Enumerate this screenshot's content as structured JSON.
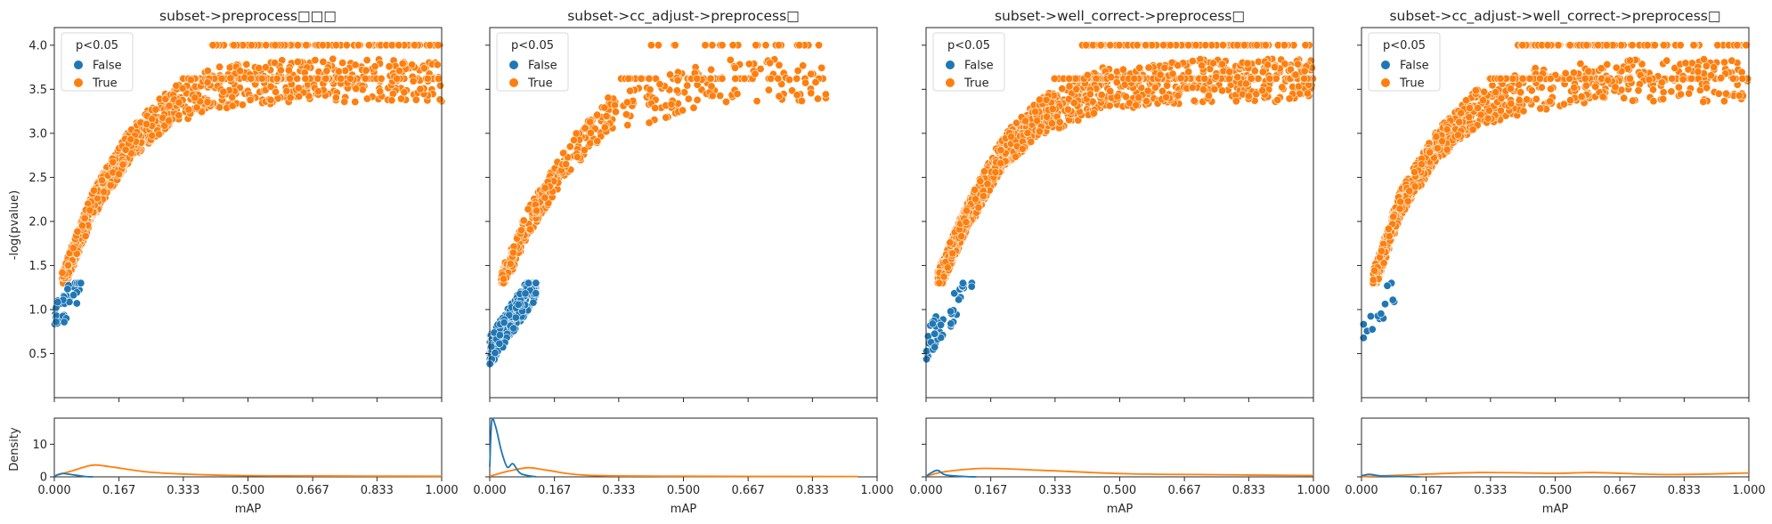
{
  "figure": {
    "ylabel_top": "-log(pvalue)",
    "ylabel_bottom": "Density",
    "xlabel": "mAP",
    "legend_title": "p<0.05",
    "legend_false": "False",
    "legend_true": "True"
  },
  "colors": {
    "false": "#1f77b4",
    "true": "#ff7f0e",
    "axis": "#262626"
  },
  "chart_data": [
    {
      "type": "scatter",
      "title": "subset->preprocess□□□",
      "xlabel": "mAP",
      "ylabel": "-log(pvalue)",
      "xlim": [
        0,
        1
      ],
      "ylim": [
        0,
        4.2
      ],
      "legend": [
        "False",
        "True"
      ],
      "legend_position": "top-left",
      "series_false": {
        "name": "False",
        "mapRange": [
          0.0,
          0.07
        ],
        "logpRange": [
          0.7,
          1.3
        ],
        "count": 40
      },
      "series_true": {
        "name": "True",
        "curve": [
          [
            0.02,
            1.3
          ],
          [
            0.1,
            2.2
          ],
          [
            0.2,
            2.9
          ],
          [
            0.3,
            3.3
          ],
          [
            0.4,
            3.5
          ],
          [
            0.6,
            3.6
          ]
        ],
        "saturation": 4.0,
        "maxMap": 1.0,
        "count": 1500
      },
      "density": {
        "type": "line",
        "ylim": [
          0,
          18
        ],
        "false": [
          [
            0,
            0.2
          ],
          [
            0.02,
            1.0
          ],
          [
            0.05,
            0.6
          ],
          [
            0.08,
            0.1
          ],
          [
            0.1,
            0
          ]
        ],
        "true": [
          [
            0,
            0.3
          ],
          [
            0.05,
            2.0
          ],
          [
            0.1,
            3.6
          ],
          [
            0.15,
            3.0
          ],
          [
            0.25,
            1.4
          ],
          [
            0.4,
            0.6
          ],
          [
            0.6,
            0.3
          ],
          [
            1.0,
            0.2
          ]
        ]
      }
    },
    {
      "type": "scatter",
      "title": "subset->cc_adjust->preprocess□",
      "xlabel": "mAP",
      "ylabel": "-log(pvalue)",
      "xlim": [
        0,
        1
      ],
      "ylim": [
        0,
        4.2
      ],
      "legend": [
        "False",
        "True"
      ],
      "legend_position": "top-left",
      "series_false": {
        "name": "False",
        "mapRange": [
          0.0,
          0.12
        ],
        "logpRange": [
          0.2,
          1.3
        ],
        "count": 350
      },
      "series_true": {
        "name": "True",
        "curve": [
          [
            0.03,
            1.3
          ],
          [
            0.1,
            2.0
          ],
          [
            0.2,
            2.7
          ],
          [
            0.3,
            3.2
          ],
          [
            0.45,
            3.4
          ],
          [
            0.6,
            3.6
          ]
        ],
        "saturation": 4.0,
        "maxMap": 0.87,
        "count": 500
      },
      "density": {
        "type": "line",
        "ylim": [
          0,
          18
        ],
        "false": [
          [
            0,
            3.0
          ],
          [
            0.005,
            17.0
          ],
          [
            0.015,
            15.5
          ],
          [
            0.03,
            8.0
          ],
          [
            0.045,
            3.0
          ],
          [
            0.06,
            4.0
          ],
          [
            0.08,
            1.0
          ],
          [
            0.12,
            0
          ]
        ],
        "true": [
          [
            0,
            0.2
          ],
          [
            0.05,
            1.8
          ],
          [
            0.1,
            2.8
          ],
          [
            0.15,
            2.0
          ],
          [
            0.25,
            0.5
          ],
          [
            0.5,
            0.2
          ],
          [
            0.95,
            0.1
          ]
        ]
      }
    },
    {
      "type": "scatter",
      "title": "subset->well_correct->preprocess□",
      "xlabel": "mAP",
      "ylabel": "-log(pvalue)",
      "xlim": [
        0,
        1
      ],
      "ylim": [
        0,
        4.2
      ],
      "legend": [
        "False",
        "True"
      ],
      "legend_position": "top-left",
      "series_false": {
        "name": "False",
        "mapRange": [
          0.0,
          0.12
        ],
        "logpRange": [
          0.3,
          1.3
        ],
        "count": 50
      },
      "series_true": {
        "name": "True",
        "curve": [
          [
            0.03,
            1.3
          ],
          [
            0.1,
            2.0
          ],
          [
            0.2,
            2.8
          ],
          [
            0.3,
            3.2
          ],
          [
            0.45,
            3.5
          ],
          [
            0.7,
            3.6
          ]
        ],
        "saturation": 4.0,
        "maxMap": 1.0,
        "count": 2000
      },
      "density": {
        "type": "line",
        "ylim": [
          0,
          18
        ],
        "false": [
          [
            0,
            0.1
          ],
          [
            0.01,
            1.0
          ],
          [
            0.03,
            2.0
          ],
          [
            0.05,
            0.6
          ],
          [
            0.1,
            0.1
          ],
          [
            0.13,
            0
          ]
        ],
        "true": [
          [
            0,
            0.2
          ],
          [
            0.05,
            1.6
          ],
          [
            0.15,
            2.6
          ],
          [
            0.3,
            2.0
          ],
          [
            0.5,
            1.0
          ],
          [
            0.7,
            0.7
          ],
          [
            1.0,
            0.4
          ]
        ]
      }
    },
    {
      "type": "scatter",
      "title": "subset->cc_adjust->well_correct->preprocess□",
      "xlabel": "mAP",
      "ylabel": "-log(pvalue)",
      "xlim": [
        0,
        1
      ],
      "ylim": [
        0,
        4.2
      ],
      "legend": [
        "False",
        "True"
      ],
      "legend_position": "top-left",
      "series_false": {
        "name": "False",
        "mapRange": [
          0.0,
          0.09
        ],
        "logpRange": [
          0.4,
          1.3
        ],
        "count": 14
      },
      "series_true": {
        "name": "True",
        "curve": [
          [
            0.03,
            1.3
          ],
          [
            0.1,
            2.2
          ],
          [
            0.2,
            2.9
          ],
          [
            0.3,
            3.3
          ],
          [
            0.45,
            3.5
          ],
          [
            0.65,
            3.6
          ]
        ],
        "saturation": 4.0,
        "maxMap": 1.0,
        "count": 1200
      },
      "density": {
        "type": "line",
        "ylim": [
          0,
          18
        ],
        "false": [
          [
            0,
            0.3
          ],
          [
            0.02,
            0.8
          ],
          [
            0.05,
            0.3
          ],
          [
            0.1,
            0.1
          ],
          [
            0.15,
            0
          ]
        ],
        "true": [
          [
            0,
            0.1
          ],
          [
            0.1,
            0.5
          ],
          [
            0.3,
            1.3
          ],
          [
            0.5,
            1.1
          ],
          [
            0.6,
            1.3
          ],
          [
            0.8,
            0.7
          ],
          [
            1.0,
            1.2
          ]
        ]
      }
    }
  ]
}
